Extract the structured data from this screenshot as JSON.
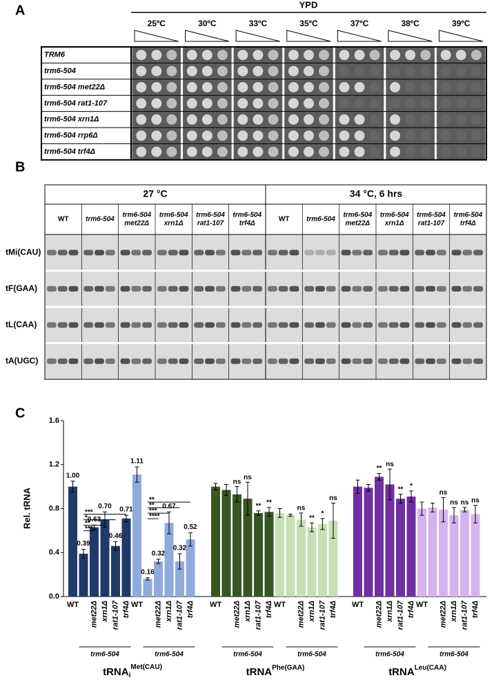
{
  "panel_a": {
    "label": "A",
    "medium": "YPD",
    "temperatures": [
      "25ºC",
      "30ºC",
      "33ºC",
      "35ºC",
      "37ºC",
      "38ºC",
      "39ºC"
    ],
    "strains": [
      "TRM6",
      "trm6-504",
      "trm6-504 met22Δ",
      "trm6-504 rat1-107",
      "trm6-504 xrn1Δ",
      "trm6-504 rrp6Δ",
      "trm6-504 trf4Δ"
    ]
  },
  "panel_b": {
    "label": "B",
    "conditions": [
      "27 °C",
      "34 °C, 6 hrs"
    ],
    "strains": [
      [
        "WT"
      ],
      [
        "trm6-504"
      ],
      [
        "trm6-504",
        "met22Δ"
      ],
      [
        "trm6-504",
        "xrn1Δ"
      ],
      [
        "trm6-504",
        "rat1-107"
      ],
      [
        "trm6-504",
        "trf4Δ"
      ]
    ],
    "probes": [
      "tMi(CAU)",
      "tF(GAA)",
      "tL(CAA)",
      "tA(UGC)"
    ]
  },
  "chart_data": {
    "type": "bar",
    "panel_label": "C",
    "ylabel": "Rel. tRNA",
    "ylim": [
      0,
      1.6
    ],
    "yticks": [
      {
        "value": 0,
        "label": "0.0"
      },
      0.4,
      0.8,
      1.2,
      1.6
    ],
    "categories": [
      "WT",
      null,
      "met22Δ",
      "xrn1Δ",
      "rat1-107",
      "trf4Δ"
    ],
    "bracket_label": "trm6-504",
    "groups": [
      {
        "title": {
          "base": "tRNA",
          "sub": "i",
          "sup": "Met(CAU)"
        },
        "series": [
          {
            "color": "#1f3a6b",
            "values": [
              1.0,
              0.39,
              0.63,
              0.7,
              0.46,
              0.71
            ],
            "errors": [
              0.05,
              0.04,
              0.02,
              0.07,
              0.04,
              0.03
            ],
            "value_labels": [
              "1.00",
              "0.39",
              "0.63",
              "0.70",
              "0.46",
              "0.71"
            ],
            "comparisons": [
              "***",
              "*",
              "**",
              "***"
            ]
          },
          {
            "color": "#8faadc",
            "values": [
              1.11,
              0.16,
              0.32,
              0.67,
              0.32,
              0.52
            ],
            "errors": [
              0.07,
              0.01,
              0.02,
              0.1,
              0.07,
              0.06
            ],
            "value_labels": [
              "1.11",
              "0.16",
              "0.32",
              "0.67",
              "0.32",
              "0.52"
            ],
            "comparisons": [
              "**",
              "**",
              "***",
              "****"
            ]
          }
        ]
      },
      {
        "title": {
          "base": "tRNA",
          "sub": null,
          "sup": "Phe(GAA)"
        },
        "series": [
          {
            "color": "#375623",
            "values": [
              1.0,
              0.97,
              0.93,
              0.89,
              0.76,
              0.77
            ],
            "errors": [
              0.03,
              0.05,
              0.07,
              0.15,
              0.02,
              0.04
            ],
            "sig": [
              null,
              null,
              "ns",
              "ns",
              "**",
              "**"
            ]
          },
          {
            "color": "#c5e0b4",
            "values": [
              0.76,
              0.74,
              0.7,
              0.63,
              0.66,
              0.69
            ],
            "errors": [
              0.04,
              0.01,
              0.06,
              0.04,
              0.05,
              0.16
            ],
            "sig": [
              null,
              null,
              "ns",
              "**",
              "*",
              "ns"
            ]
          }
        ]
      },
      {
        "title": {
          "base": "tRNA",
          "sub": null,
          "sup": "Leu(CAA)"
        },
        "series": [
          {
            "color": "#7030a0",
            "values": [
              1.0,
              0.99,
              1.09,
              1.02,
              0.89,
              0.91
            ],
            "errors": [
              0.06,
              0.03,
              0.03,
              0.14,
              0.04,
              0.05
            ],
            "sig": [
              null,
              null,
              "**",
              "ns",
              "**",
              "*"
            ]
          },
          {
            "color": "#d5b3f0",
            "values": [
              0.8,
              0.81,
              0.79,
              0.74,
              0.79,
              0.75
            ],
            "errors": [
              0.06,
              0.04,
              0.11,
              0.07,
              0.02,
              0.08
            ],
            "sig": [
              null,
              null,
              "ns",
              "ns",
              "ns",
              "ns"
            ]
          }
        ]
      }
    ]
  }
}
